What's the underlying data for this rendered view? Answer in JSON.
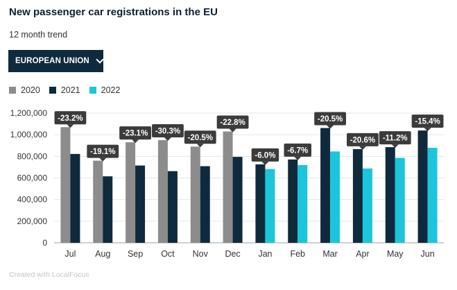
{
  "header": {
    "title": "New passenger car registrations in the EU",
    "subtitle": "12 month trend"
  },
  "region_select": {
    "label": "EUROPEAN UNION"
  },
  "footer": {
    "credit": "Created with LocalFocus"
  },
  "colors": {
    "2020": "#8c8c8c",
    "2021": "#0f2a3d",
    "2022": "#1bc6dc",
    "label_bg": "#3b3b3b"
  },
  "chart_data": {
    "type": "bar",
    "categories": [
      "Jul",
      "Aug",
      "Sep",
      "Oct",
      "Nov",
      "Dec",
      "Jan",
      "Feb",
      "Mar",
      "Apr",
      "May",
      "Jun"
    ],
    "series": [
      {
        "name": "2020",
        "values": [
          1070000,
          760000,
          930000,
          950000,
          890000,
          1030000,
          null,
          null,
          null,
          null,
          null,
          null
        ]
      },
      {
        "name": "2021",
        "values": [
          822000,
          615000,
          715000,
          663000,
          709000,
          795000,
          726000,
          771000,
          1062000,
          867000,
          885000,
          1039000
        ]
      },
      {
        "name": "2022",
        "values": [
          null,
          null,
          null,
          null,
          null,
          null,
          683000,
          719000,
          845000,
          688000,
          786000,
          879000
        ]
      }
    ],
    "labels": [
      "-23.2%",
      "-19.1%",
      "-23.1%",
      "-30.3%",
      "-20.5%",
      "-22.8%",
      "-6.0%",
      "-6.7%",
      "-20.5%",
      "-20.6%",
      "-11.2%",
      "-15.4%"
    ],
    "ylim": [
      0,
      1200000
    ],
    "yticks": [
      "0",
      "200,000",
      "400,000",
      "600,000",
      "800,000",
      "1,000,000",
      "1,200,000"
    ],
    "grid": true,
    "legend_placement": "top-left"
  }
}
